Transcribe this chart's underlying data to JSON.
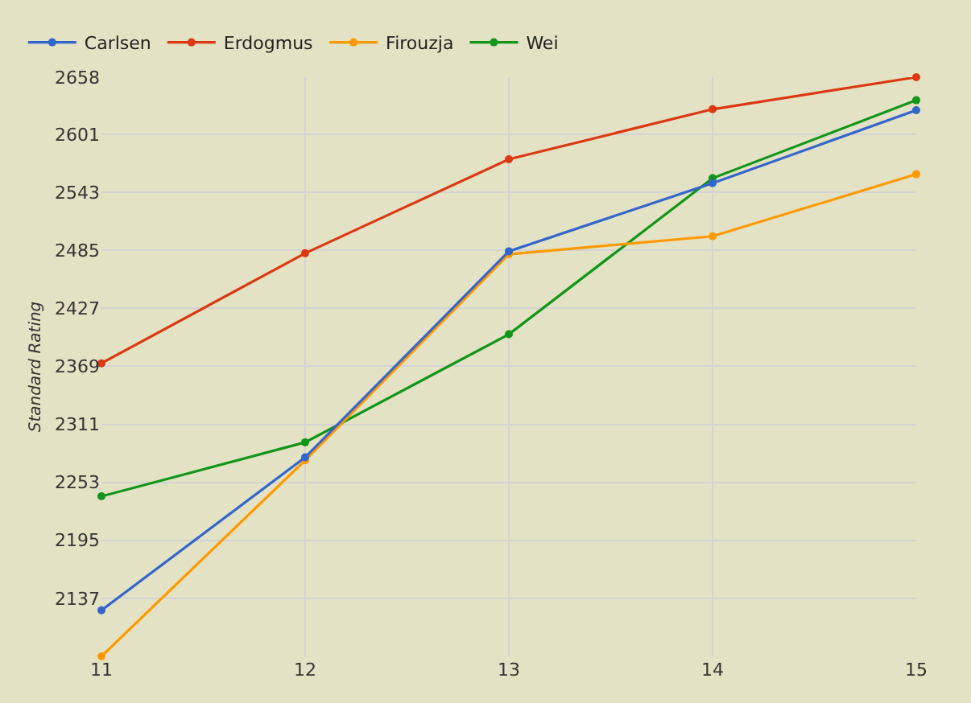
{
  "chart_data": {
    "type": "line",
    "ylabel": "Standard Rating",
    "x": [
      11,
      12,
      13,
      14,
      15
    ],
    "xlim": [
      11,
      15
    ],
    "xticks": [
      11,
      12,
      13,
      14,
      15
    ],
    "ylim": [
      2079,
      2658
    ],
    "yticks": [
      2137,
      2195,
      2253,
      2311,
      2369,
      2427,
      2485,
      2543,
      2601,
      2658
    ],
    "series": [
      {
        "name": "Carlsen",
        "color": "#3366cc",
        "values": [
          2125,
          2278,
          2484,
          2552,
          2625
        ]
      },
      {
        "name": "Erdogmus",
        "color": "#dc3912",
        "values": [
          2372,
          2482,
          2576,
          2626,
          2658
        ]
      },
      {
        "name": "Firouzja",
        "color": "#ff9900",
        "values": [
          2079,
          2275,
          2481,
          2499,
          2561
        ]
      },
      {
        "name": "Wei",
        "color": "#109618",
        "values": [
          2239,
          2293,
          2401,
          2557,
          2635
        ]
      }
    ],
    "grid": true,
    "legend": "top left",
    "marker": "circle",
    "line_style": "solid"
  }
}
